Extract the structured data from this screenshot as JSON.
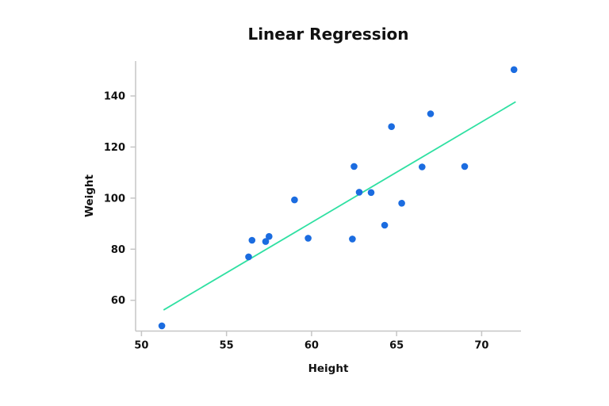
{
  "chart_data": {
    "type": "scatter",
    "title": "Linear Regression",
    "xlabel": "Height",
    "ylabel": "Weight",
    "grid": false,
    "legend": "none",
    "x_ticks": [
      50,
      55,
      60,
      65,
      70
    ],
    "y_ticks": [
      60,
      80,
      100,
      120,
      140
    ],
    "xlim": [
      49.65,
      72.3
    ],
    "ylim": [
      48,
      153.5
    ],
    "points": [
      {
        "x": 51.2,
        "y": 50.0
      },
      {
        "x": 56.3,
        "y": 77.0
      },
      {
        "x": 56.5,
        "y": 83.5
      },
      {
        "x": 57.3,
        "y": 83.0
      },
      {
        "x": 57.5,
        "y": 85.0
      },
      {
        "x": 59.0,
        "y": 99.3
      },
      {
        "x": 59.8,
        "y": 84.3
      },
      {
        "x": 62.4,
        "y": 84.0
      },
      {
        "x": 62.5,
        "y": 112.4
      },
      {
        "x": 62.8,
        "y": 102.3
      },
      {
        "x": 63.5,
        "y": 102.2
      },
      {
        "x": 64.3,
        "y": 89.4
      },
      {
        "x": 64.7,
        "y": 128.0
      },
      {
        "x": 65.3,
        "y": 98.0
      },
      {
        "x": 66.5,
        "y": 112.2
      },
      {
        "x": 67.0,
        "y": 133.0
      },
      {
        "x": 69.0,
        "y": 112.4
      },
      {
        "x": 71.9,
        "y": 150.3
      }
    ],
    "regression_line": {
      "x1": 51.3,
      "y1": 56.2,
      "x2": 72.0,
      "y2": 137.7
    },
    "colors": {
      "point": "#1b6ce0",
      "line": "#2fe0a2",
      "axis": "#c6c6c6",
      "text": "#111111"
    }
  }
}
